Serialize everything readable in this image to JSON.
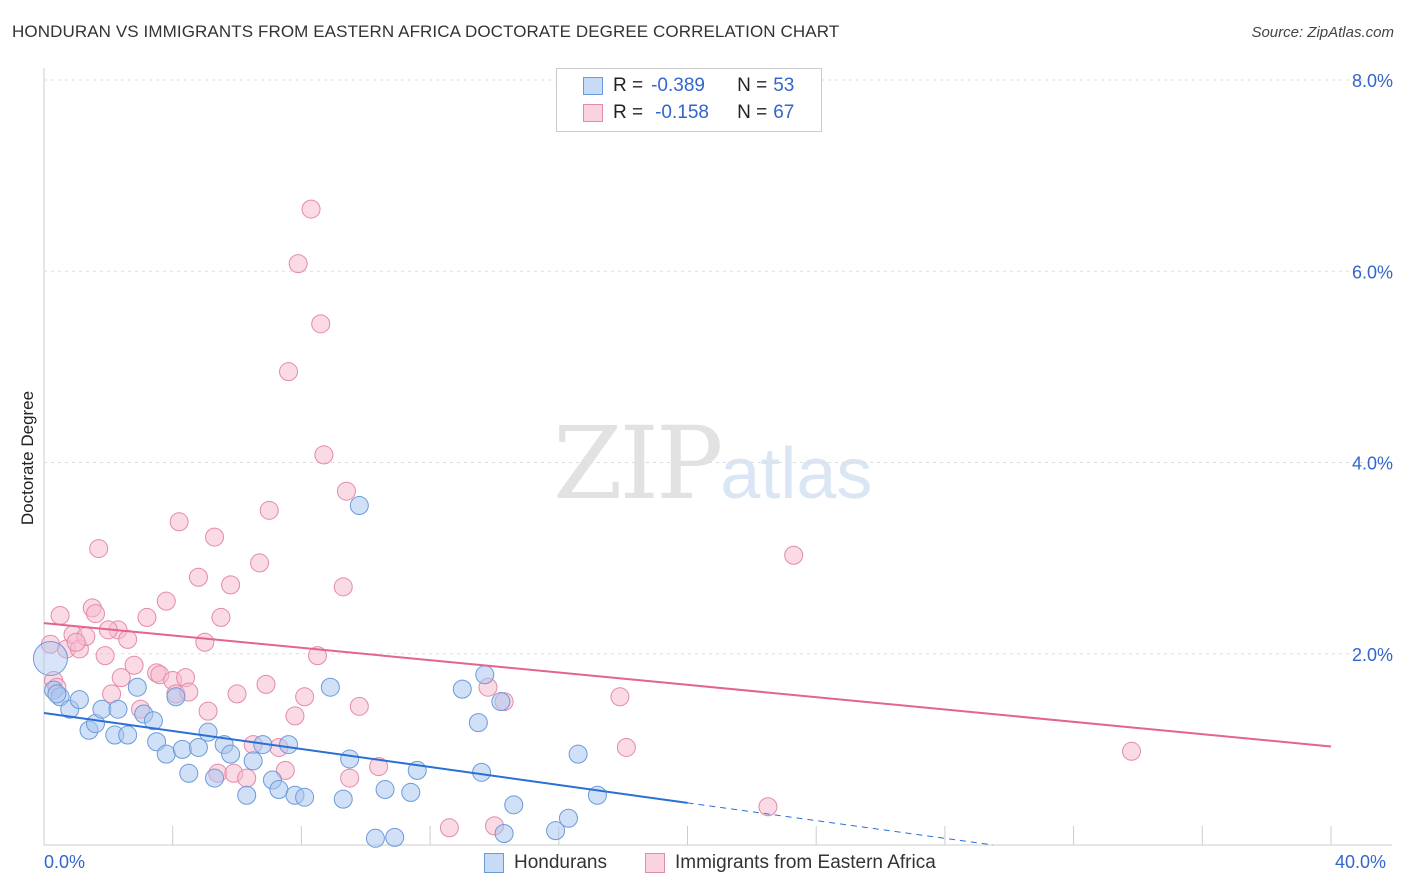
{
  "header": {
    "title": "HONDURAN VS IMMIGRANTS FROM EASTERN AFRICA DOCTORATE DEGREE CORRELATION CHART",
    "source": "Source: ZipAtlas.com"
  },
  "watermark": {
    "zip": "ZIP",
    "atlas": "atlas"
  },
  "legend": {
    "r_label": "R = ",
    "n_label": "N = ",
    "series1": {
      "r": "-0.389",
      "n": "53"
    },
    "series2": {
      "r": "-0.158",
      "n": "67"
    }
  },
  "bottom_legend": {
    "series1": "Hondurans",
    "series2": "Immigrants from Eastern Africa"
  },
  "colors": {
    "blue_fill": "#a9c6ef",
    "blue_stroke": "#6c9ad8",
    "blue_line": "#2a6fd6",
    "pink_fill": "#f6bcd0",
    "pink_stroke": "#e48aab",
    "pink_line": "#e2648f",
    "grid": "#dddddd",
    "axis_label": "#3366cc"
  },
  "chart_data": {
    "type": "scatter",
    "title": "HONDURAN VS IMMIGRANTS FROM EASTERN AFRICA DOCTORATE DEGREE CORRELATION CHART",
    "xlabel": "",
    "ylabel": "Doctorate Degree",
    "xlim": [
      0,
      40
    ],
    "ylim": [
      0,
      8.0
    ],
    "x_tick_labels": [
      "0.0%",
      "40.0%"
    ],
    "y_ticks": [
      2.0,
      4.0,
      6.0,
      8.0
    ],
    "y_tick_labels": [
      "2.0%",
      "4.0%",
      "6.0%",
      "8.0%"
    ],
    "grid": true,
    "series": [
      {
        "name": "Hondurans",
        "r": -0.389,
        "n": 53,
        "trend": {
          "x": [
            0,
            20
          ],
          "y": [
            1.38,
            0.44
          ]
        },
        "trend_extension": {
          "x": [
            20,
            29.5
          ],
          "y": [
            0.44,
            0.0
          ]
        },
        "points": [
          [
            0.2,
            1.95
          ],
          [
            0.3,
            1.62
          ],
          [
            0.5,
            1.55
          ],
          [
            0.8,
            1.42
          ],
          [
            1.1,
            1.52
          ],
          [
            1.4,
            1.2
          ],
          [
            1.6,
            1.27
          ],
          [
            1.8,
            1.42
          ],
          [
            2.2,
            1.15
          ],
          [
            2.3,
            1.42
          ],
          [
            2.6,
            1.15
          ],
          [
            2.9,
            1.65
          ],
          [
            3.1,
            1.37
          ],
          [
            3.4,
            1.3
          ],
          [
            3.5,
            1.08
          ],
          [
            3.8,
            0.95
          ],
          [
            4.1,
            1.55
          ],
          [
            4.3,
            1.0
          ],
          [
            4.5,
            0.75
          ],
          [
            4.8,
            1.02
          ],
          [
            5.1,
            1.18
          ],
          [
            5.3,
            0.7
          ],
          [
            5.6,
            1.05
          ],
          [
            5.8,
            0.95
          ],
          [
            6.3,
            0.52
          ],
          [
            6.5,
            0.88
          ],
          [
            6.8,
            1.05
          ],
          [
            7.1,
            0.68
          ],
          [
            7.3,
            0.58
          ],
          [
            7.6,
            1.05
          ],
          [
            7.8,
            0.52
          ],
          [
            8.1,
            0.5
          ],
          [
            8.9,
            1.65
          ],
          [
            9.3,
            0.48
          ],
          [
            9.5,
            0.9
          ],
          [
            9.8,
            3.55
          ],
          [
            10.3,
            0.07
          ],
          [
            10.6,
            0.58
          ],
          [
            10.9,
            0.08
          ],
          [
            11.4,
            0.55
          ],
          [
            11.6,
            0.78
          ],
          [
            13.0,
            1.63
          ],
          [
            13.5,
            1.28
          ],
          [
            13.6,
            0.76
          ],
          [
            13.7,
            1.78
          ],
          [
            14.2,
            1.5
          ],
          [
            14.3,
            0.12
          ],
          [
            14.6,
            0.42
          ],
          [
            15.9,
            0.15
          ],
          [
            16.3,
            0.28
          ],
          [
            16.6,
            0.95
          ],
          [
            17.2,
            0.52
          ],
          [
            0.4,
            1.58
          ]
        ]
      },
      {
        "name": "Immigrants from Eastern Africa",
        "r": -0.158,
        "n": 67,
        "trend": {
          "x": [
            0,
            40
          ],
          "y": [
            2.32,
            1.03
          ]
        },
        "points": [
          [
            0.2,
            2.1
          ],
          [
            0.3,
            1.72
          ],
          [
            0.5,
            2.4
          ],
          [
            0.7,
            2.05
          ],
          [
            0.9,
            2.2
          ],
          [
            1.1,
            2.05
          ],
          [
            1.3,
            2.18
          ],
          [
            1.5,
            2.48
          ],
          [
            1.6,
            2.42
          ],
          [
            1.7,
            3.1
          ],
          [
            1.9,
            1.98
          ],
          [
            2.1,
            1.58
          ],
          [
            2.3,
            2.25
          ],
          [
            2.4,
            1.75
          ],
          [
            2.6,
            2.15
          ],
          [
            2.8,
            1.88
          ],
          [
            3.0,
            1.42
          ],
          [
            3.2,
            2.38
          ],
          [
            3.5,
            1.8
          ],
          [
            3.6,
            1.78
          ],
          [
            3.8,
            2.55
          ],
          [
            4.0,
            1.72
          ],
          [
            4.1,
            1.58
          ],
          [
            4.2,
            3.38
          ],
          [
            4.4,
            1.75
          ],
          [
            4.5,
            1.6
          ],
          [
            4.8,
            2.8
          ],
          [
            5.0,
            2.12
          ],
          [
            5.1,
            1.4
          ],
          [
            5.3,
            3.22
          ],
          [
            5.4,
            0.75
          ],
          [
            5.5,
            2.38
          ],
          [
            5.8,
            2.72
          ],
          [
            5.9,
            0.75
          ],
          [
            6.0,
            1.58
          ],
          [
            6.3,
            0.7
          ],
          [
            6.5,
            1.05
          ],
          [
            6.7,
            2.95
          ],
          [
            6.9,
            1.68
          ],
          [
            7.0,
            3.5
          ],
          [
            7.3,
            1.02
          ],
          [
            7.5,
            0.78
          ],
          [
            7.6,
            4.95
          ],
          [
            7.8,
            1.35
          ],
          [
            7.9,
            6.08
          ],
          [
            8.1,
            1.55
          ],
          [
            8.3,
            6.65
          ],
          [
            8.5,
            1.98
          ],
          [
            8.6,
            5.45
          ],
          [
            8.7,
            4.08
          ],
          [
            9.5,
            0.7
          ],
          [
            9.3,
            2.7
          ],
          [
            9.4,
            3.7
          ],
          [
            9.8,
            1.45
          ],
          [
            10.4,
            0.82
          ],
          [
            12.6,
            0.18
          ],
          [
            13.8,
            1.65
          ],
          [
            14.0,
            0.2
          ],
          [
            14.3,
            1.5
          ],
          [
            17.9,
            1.55
          ],
          [
            18.1,
            1.02
          ],
          [
            22.5,
            0.4
          ],
          [
            23.3,
            3.03
          ],
          [
            33.8,
            0.98
          ],
          [
            0.4,
            1.65
          ],
          [
            2.0,
            2.25
          ],
          [
            1.0,
            2.12
          ]
        ]
      }
    ]
  }
}
